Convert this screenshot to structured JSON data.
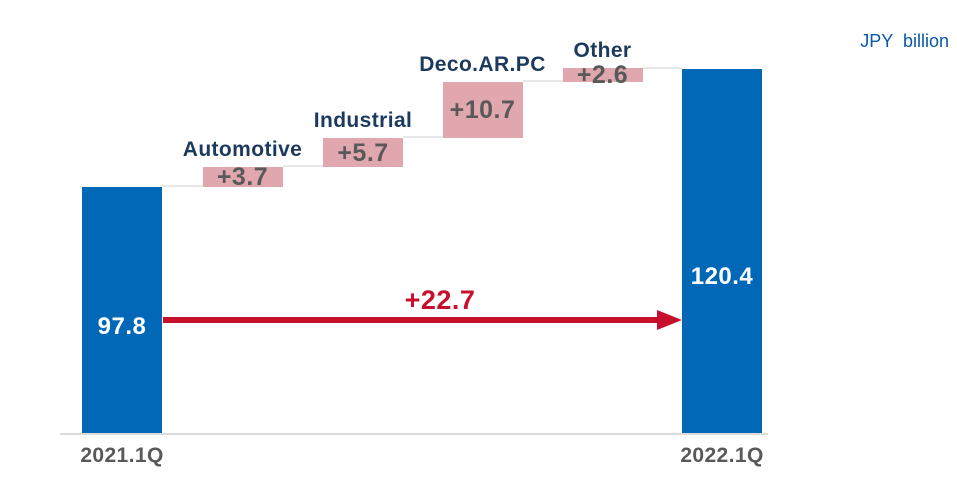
{
  "unit_label": "JPY  billion",
  "chart_data": {
    "type": "bar",
    "subtype": "waterfall",
    "title": "",
    "xlabel": "",
    "ylabel": "JPY billion",
    "grid": false,
    "legend": false,
    "ylim": [
      50.4,
      124
    ],
    "categories": [
      "2021.1Q",
      "Automotive",
      "Industrial",
      "Deco.AR.PC",
      "Other",
      "2022.1Q"
    ],
    "start": {
      "label": "2021.1Q",
      "value": 97.8,
      "value_label": "97.8"
    },
    "steps": [
      {
        "label": "Automotive",
        "value": 3.7,
        "delta": "+3.7"
      },
      {
        "label": "Industrial",
        "value": 5.7,
        "delta": "+5.7"
      },
      {
        "label": "Deco.AR.PC",
        "value": 10.7,
        "delta": "+10.7"
      },
      {
        "label": "Other",
        "value": 2.6,
        "delta": "+2.6"
      }
    ],
    "end": {
      "label": "2022.1Q",
      "value": 120.4,
      "value_label": "120.4"
    },
    "total_change": {
      "label": "+22.7",
      "value": 22.7
    },
    "colors": {
      "total_bar": "#0068B7",
      "step_bar": "#E0A8AE",
      "step_value_text": "#595959",
      "category_text": "#1C3A5E",
      "bar_value_text": "#FFFFFF",
      "arrow": "#C8102E",
      "axis_label_text": "#595959",
      "unit_text": "#0B57A8",
      "connector_line": "#E7E7E7",
      "baseline": "#DBDBDB"
    }
  }
}
